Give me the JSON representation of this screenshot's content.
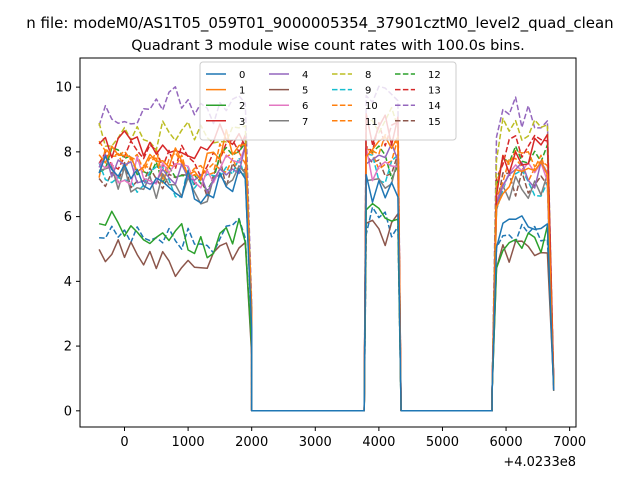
{
  "page": {
    "suptitle": "n file: modeM0/AS1T05_059T01_9000005354_37901cztM0_level2_quad_clean",
    "offset_label": "+4.0233e8"
  },
  "chart_data": {
    "type": "line",
    "title": "Quadrant 3 module wise count rates with 100.0s bins.",
    "xlabel": "",
    "ylabel": "",
    "xlim": [
      -700,
      7100
    ],
    "ylim": [
      -0.5,
      10.9
    ],
    "x_ticks": [
      0,
      1000,
      2000,
      3000,
      4000,
      5000,
      6000,
      7000
    ],
    "y_ticks": [
      0,
      2,
      4,
      6,
      8,
      10
    ],
    "legend": "upper-center",
    "legend_columns": 4,
    "grid": false,
    "x_segments": {
      "segment_1": [
        -400,
        -300,
        -200,
        -100,
        0,
        100,
        200,
        300,
        400,
        500,
        600,
        700,
        800,
        900,
        1000,
        1100,
        1200,
        1300,
        1400,
        1500,
        1600,
        1700,
        1800,
        1900,
        2000
      ],
      "gap_1": [
        2000,
        2100,
        3700,
        3770
      ],
      "segment_2": [
        3770,
        3800,
        3900,
        4000,
        4100,
        4200,
        4300,
        4350
      ],
      "gap_2": [
        4350,
        4450,
        5700,
        5780
      ],
      "segment_3": [
        5780,
        5850,
        5950,
        6050,
        6150,
        6250,
        6350,
        6450,
        6550,
        6650,
        6750
      ]
    },
    "series": [
      {
        "name": "0",
        "color": "#1f77b4",
        "dash": "solid",
        "levels": [
          7.6,
          7.0,
          7.2,
          6.3,
          7.3,
          5.6,
          6.0
        ]
      },
      {
        "name": "1",
        "color": "#ff7f0e",
        "dash": "solid",
        "levels": [
          8.1,
          7.6,
          8.4,
          7.2,
          8.6,
          7.0,
          7.7
        ]
      },
      {
        "name": "2",
        "color": "#2ca02c",
        "dash": "solid",
        "levels": [
          5.9,
          5.3,
          5.5,
          4.6,
          6.6,
          4.9,
          5.4
        ]
      },
      {
        "name": "3",
        "color": "#d62728",
        "dash": "solid",
        "levels": [
          8.3,
          8.0,
          8.6,
          7.6,
          9.2,
          7.4,
          8.4
        ]
      },
      {
        "name": "4",
        "color": "#9467bd",
        "dash": "solid",
        "levels": [
          7.5,
          7.2,
          7.8,
          7.0,
          8.4,
          7.1,
          7.4
        ]
      },
      {
        "name": "5",
        "color": "#8c564b",
        "dash": "solid",
        "levels": [
          4.9,
          4.6,
          4.9,
          4.3,
          6.2,
          4.9,
          5.1
        ]
      },
      {
        "name": "6",
        "color": "#e377c2",
        "dash": "solid",
        "levels": [
          7.5,
          7.3,
          8.0,
          6.8,
          8.2,
          7.2,
          7.5
        ]
      },
      {
        "name": "7",
        "color": "#7f7f7f",
        "dash": "solid",
        "levels": [
          7.2,
          6.9,
          7.3,
          6.6,
          7.9,
          6.9,
          7.0
        ]
      },
      {
        "name": "8",
        "color": "#bcbd22",
        "dash": "dashed",
        "levels": [
          8.6,
          8.5,
          8.9,
          8.2,
          9.4,
          8.6,
          8.7
        ]
      },
      {
        "name": "9",
        "color": "#17becf",
        "dash": "dashed",
        "levels": [
          7.3,
          7.0,
          7.4,
          6.7,
          8.0,
          6.9,
          7.1
        ]
      },
      {
        "name": "10",
        "color": "#ff7f0e",
        "dash": "dashed",
        "levels": [
          7.9,
          7.6,
          8.0,
          7.3,
          8.9,
          7.6,
          7.8
        ]
      },
      {
        "name": "11",
        "color": "#ff7f0e",
        "dash": "dashed",
        "levels": [
          7.7,
          7.4,
          7.8,
          7.1,
          8.5,
          7.3,
          7.6
        ]
      },
      {
        "name": "12",
        "color": "#2ca02c",
        "dash": "dashed",
        "levels": [
          7.8,
          7.3,
          7.9,
          7.1,
          8.2,
          7.7,
          7.9
        ]
      },
      {
        "name": "13",
        "color": "#d62728",
        "dash": "dashed",
        "levels": [
          8.0,
          7.8,
          8.3,
          7.4,
          9.0,
          8.0,
          8.2
        ]
      },
      {
        "name": "14",
        "color": "#9467bd",
        "dash": "dashed",
        "levels": [
          9.1,
          9.6,
          9.4,
          8.8,
          10.2,
          9.4,
          9.0
        ]
      },
      {
        "name": "15",
        "color": "#8c564b",
        "dash": "dashed",
        "levels": [
          7.4,
          7.0,
          7.5,
          6.8,
          8.0,
          7.0,
          7.2
        ]
      },
      {
        "name": "",
        "color": "#1f77b4",
        "dash": "dashed",
        "levels": [
          5.5,
          5.3,
          5.5,
          4.9,
          6.3,
          5.6,
          5.7
        ]
      }
    ]
  }
}
